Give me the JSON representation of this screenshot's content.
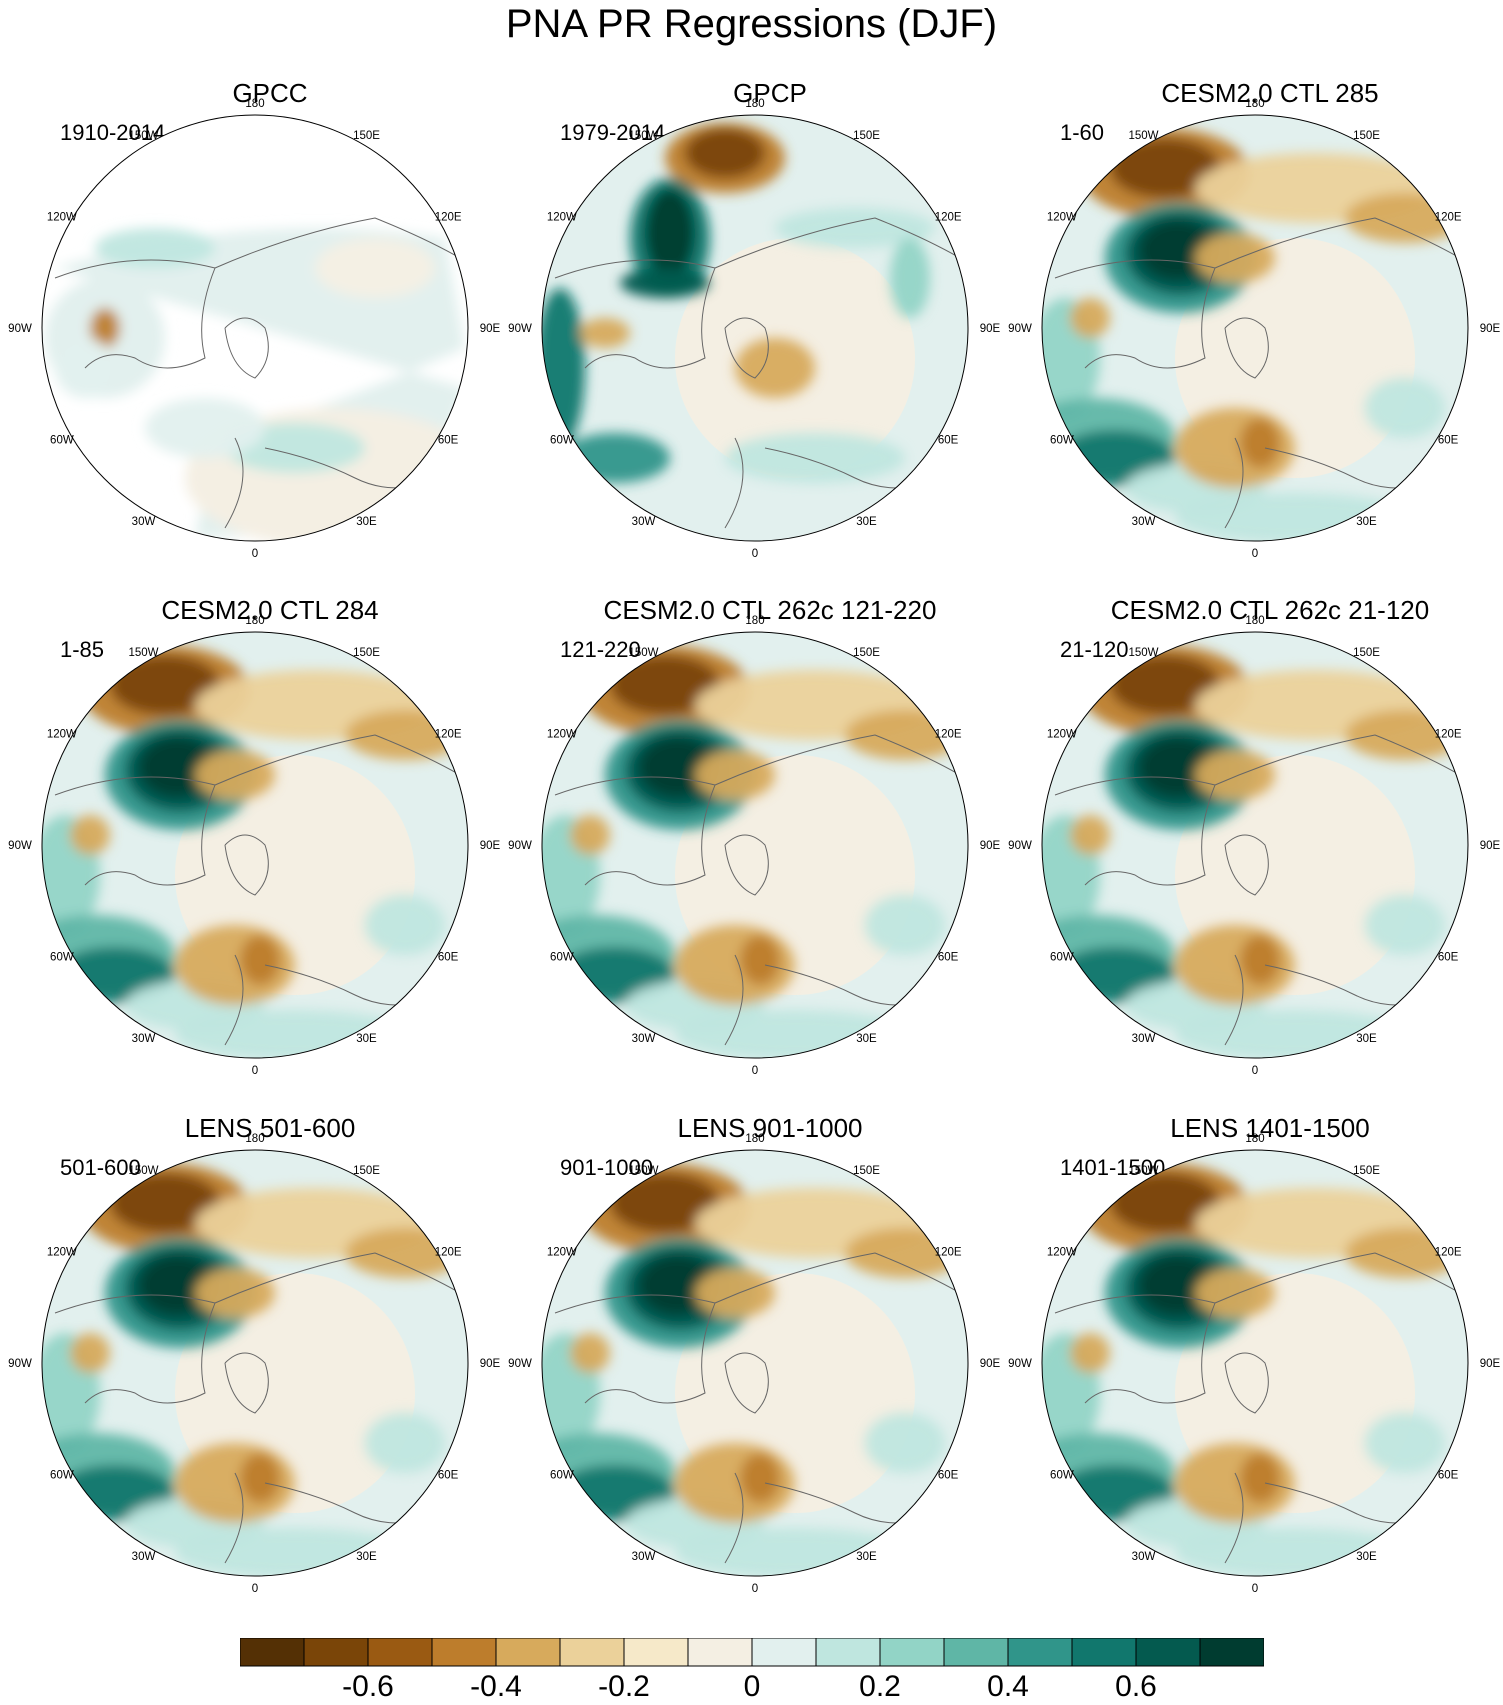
{
  "title": "PNA PR Regressions (DJF)",
  "lon_labels": [
    "180",
    "150E",
    "120E",
    "90E",
    "60E",
    "30E",
    "0",
    "30W",
    "60W",
    "90W",
    "120W",
    "150W"
  ],
  "panels": [
    {
      "title": "GPCC",
      "years": "1910-2014",
      "kind": "gpcc"
    },
    {
      "title": "GPCP",
      "years": "1979-2014",
      "kind": "obs2"
    },
    {
      "title": "CESM2.0 CTL 285",
      "years": "1-60",
      "kind": "model"
    },
    {
      "title": "CESM2.0 CTL 284",
      "years": "1-85",
      "kind": "model"
    },
    {
      "title": "CESM2.0 CTL 262c 121-220",
      "years": "121-220",
      "kind": "model"
    },
    {
      "title": "CESM2.0 CTL 262c 21-120",
      "years": "21-120",
      "kind": "model"
    },
    {
      "title": "LENS 501-600",
      "years": "501-600",
      "kind": "model"
    },
    {
      "title": "LENS 901-1000",
      "years": "901-1000",
      "kind": "model"
    },
    {
      "title": "LENS 1401-1500",
      "years": "1401-1500",
      "kind": "model"
    }
  ],
  "colorbar": {
    "colors": [
      "#543005",
      "#7a4508",
      "#9a5a12",
      "#bd7d2c",
      "#d7aa5c",
      "#ebd19a",
      "#f6e9c9",
      "#f4efe3",
      "#e2f0ee",
      "#bfe6df",
      "#92d4c6",
      "#5fb6a6",
      "#30958a",
      "#11776d",
      "#045a4f",
      "#003c30"
    ],
    "tick_labels": [
      "-0.6",
      "-0.4",
      "-0.2",
      "0",
      "0.2",
      "0.4",
      "0.6"
    ]
  }
}
